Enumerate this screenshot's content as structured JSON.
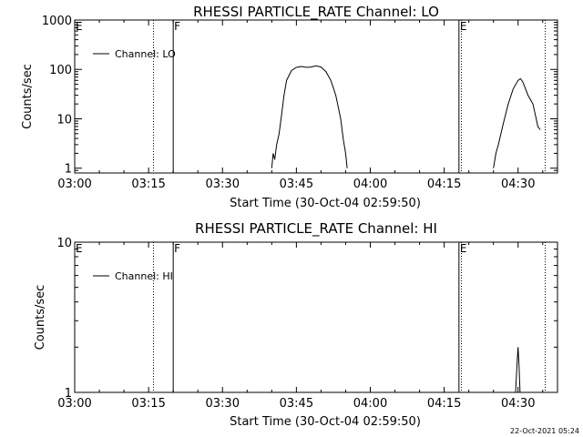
{
  "footer_timestamp": "22-Oct-2021 05:24",
  "chart_data": [
    {
      "type": "line",
      "title": "RHESSI PARTICLE_RATE Channel: LO",
      "xlabel": "Start Time (30-Oct-04 02:59:50)",
      "ylabel": "Counts/sec",
      "yscale": "log",
      "xlim": [
        "03:00",
        "04:38"
      ],
      "ylim": [
        0.8,
        1000
      ],
      "x_ticks": [
        "03:00",
        "03:15",
        "03:30",
        "03:45",
        "04:00",
        "04:15",
        "04:30"
      ],
      "y_ticks": [
        "1",
        "10",
        "100",
        "1000"
      ],
      "legend": {
        "label": "Channel: LO",
        "placement": "top-left"
      },
      "markers": [
        {
          "time": "03:16",
          "style": "dotted",
          "label": ""
        },
        {
          "time": "03:20",
          "style": "solid",
          "label": "F"
        },
        {
          "time": "04:18",
          "style": "solid",
          "label": "E"
        },
        {
          "time": "04:18.5",
          "style": "dotted",
          "label": ""
        },
        {
          "time": "04:35.5",
          "style": "dotted",
          "label": ""
        }
      ],
      "corner_label": "E",
      "series": [
        {
          "segments": [
            {
              "x": [
                "03:40",
                "03:40.3",
                "03:40.6",
                "03:41",
                "03:41.5",
                "03:42",
                "03:42.5",
                "03:43",
                "03:44",
                "03:45",
                "03:46",
                "03:47",
                "03:48",
                "03:49",
                "03:50",
                "03:51",
                "03:52",
                "03:53",
                "03:54",
                "03:54.5",
                "03:55",
                "03:55.3"
              ],
              "y": [
                1,
                2,
                1.5,
                3,
                5,
                12,
                30,
                60,
                95,
                110,
                115,
                110,
                112,
                118,
                112,
                90,
                60,
                30,
                10,
                4,
                2,
                1
              ]
            },
            {
              "x": [
                "04:25",
                "04:25.5",
                "04:26",
                "04:27",
                "04:28",
                "04:29",
                "04:30",
                "04:30.5",
                "04:31",
                "04:32",
                "04:33",
                "04:33.5",
                "04:34",
                "04:34.5"
              ],
              "y": [
                1,
                2,
                3,
                8,
                20,
                40,
                60,
                65,
                55,
                30,
                20,
                12,
                7,
                6
              ]
            }
          ]
        }
      ]
    },
    {
      "type": "line",
      "title": "RHESSI PARTICLE_RATE Channel: HI",
      "xlabel": "Start Time (30-Oct-04 02:59:50)",
      "ylabel": "Counts/sec",
      "yscale": "log",
      "xlim": [
        "03:00",
        "04:38"
      ],
      "ylim": [
        1,
        10
      ],
      "x_ticks": [
        "03:00",
        "03:15",
        "03:30",
        "03:45",
        "04:00",
        "04:15",
        "04:30"
      ],
      "y_ticks": [
        "1",
        "10"
      ],
      "legend": {
        "label": "Channel: HI",
        "placement": "top-left"
      },
      "markers": [
        {
          "time": "03:16",
          "style": "dotted",
          "label": ""
        },
        {
          "time": "03:20",
          "style": "solid",
          "label": "F"
        },
        {
          "time": "04:18",
          "style": "solid",
          "label": "E"
        },
        {
          "time": "04:18.5",
          "style": "dotted",
          "label": ""
        },
        {
          "time": "04:35.5",
          "style": "dotted",
          "label": ""
        }
      ],
      "corner_label": "E",
      "series": [
        {
          "segments": [
            {
              "x": [
                "04:29.5",
                "04:29.8",
                "04:30",
                "04:30.2",
                "04:30.4"
              ],
              "y": [
                1,
                1.6,
                2,
                1.5,
                1
              ]
            }
          ]
        }
      ]
    }
  ]
}
